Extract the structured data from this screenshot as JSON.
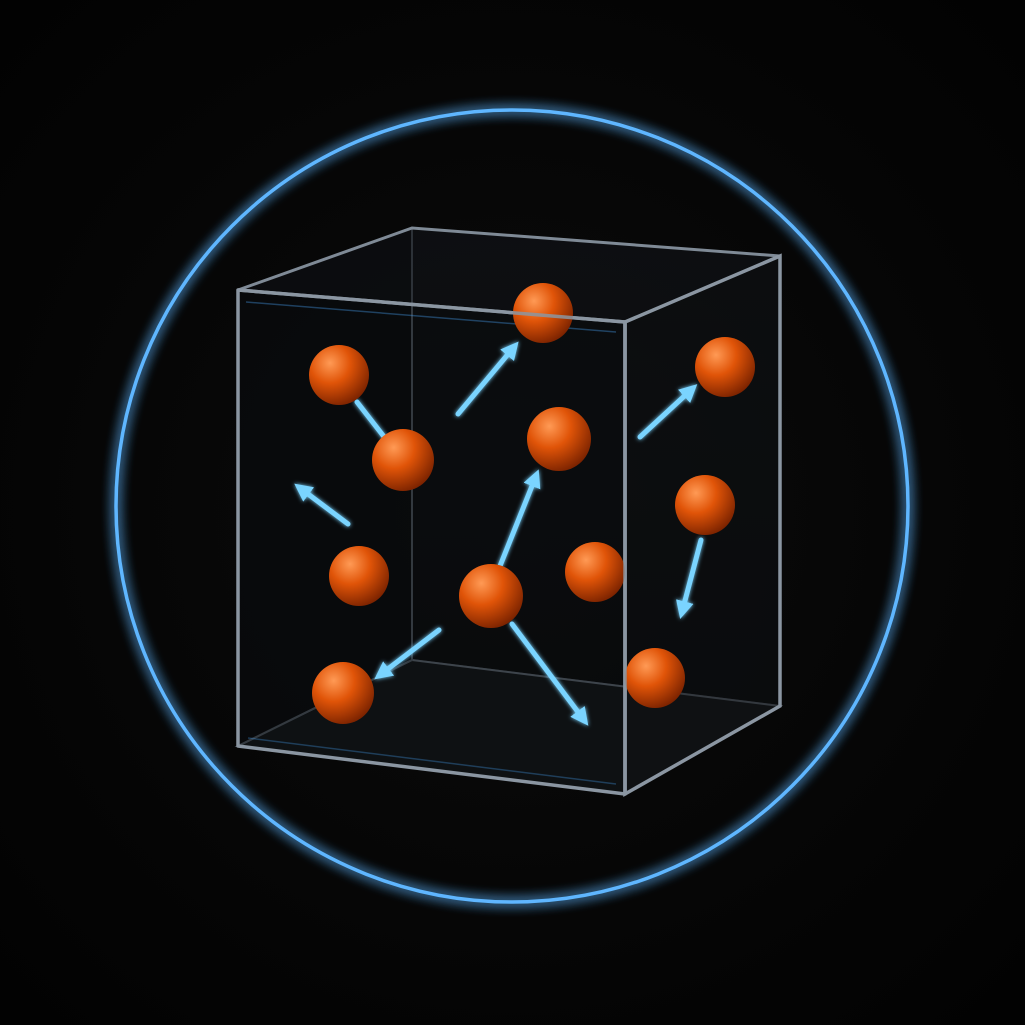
{
  "scene": {
    "background": "#050505",
    "ring": {
      "color": "#5fb6ff",
      "glow": "#1e7fe8"
    },
    "box": {
      "edge_color": "#7f8a96",
      "face_tint": "#0b0d10",
      "bottom_tint": "#151719"
    },
    "particle": {
      "base": "#e05408",
      "highlight": "#ff9a55",
      "shadow": "#7a2200"
    },
    "arrow": {
      "color": "#7ad4ff"
    },
    "particle_count": 12,
    "arrow_count": 8
  },
  "icons": [
    "particle-icon",
    "velocity-arrow-icon",
    "container-box-icon",
    "glow-ring-icon"
  ]
}
